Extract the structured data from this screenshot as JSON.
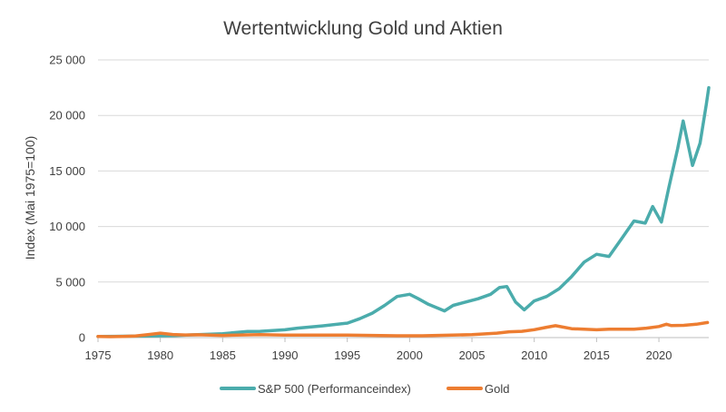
{
  "chart_data": {
    "type": "line",
    "title": "Wertentwicklung Gold und Aktien",
    "ylabel": "Index (Mai 1975=100)",
    "xlabel": "",
    "xlim": [
      1975,
      2024
    ],
    "ylim": [
      0,
      25000
    ],
    "x_ticks": [
      1975,
      1980,
      1985,
      1990,
      1995,
      2000,
      2005,
      2010,
      2015,
      2020
    ],
    "x_tick_labels": [
      "1975",
      "1980",
      "1985",
      "1990",
      "1995",
      "2000",
      "2005",
      "2010",
      "2015",
      "2020"
    ],
    "y_ticks": [
      0,
      5000,
      10000,
      15000,
      20000,
      25000
    ],
    "y_tick_labels": [
      "0",
      "5 000",
      "10 000",
      "15 000",
      "20 000",
      "25 000"
    ],
    "grid": "horizontal",
    "legend_position": "bottom",
    "series": [
      {
        "name": "S&P 500 (Performanceindex)",
        "color": "#4bacac",
        "x": [
          1975,
          1977,
          1979,
          1981,
          1983,
          1985,
          1987,
          1988,
          1990,
          1991,
          1993,
          1995,
          1996,
          1997,
          1998,
          1999,
          2000,
          2000.7,
          2001.5,
          2002.8,
          2003.5,
          2004.5,
          2005.5,
          2006.5,
          2007.2,
          2007.8,
          2008.5,
          2009.2,
          2010,
          2011,
          2012,
          2013,
          2014,
          2015,
          2016,
          2017,
          2018,
          2018.9,
          2019.5,
          2020.2,
          2020.8,
          2021.5,
          2021.95,
          2022.7,
          2023.3,
          2023.8,
          2024
        ],
        "values": [
          100,
          120,
          140,
          170,
          260,
          350,
          550,
          560,
          700,
          850,
          1050,
          1300,
          1700,
          2200,
          2900,
          3700,
          3900,
          3500,
          3000,
          2400,
          2900,
          3200,
          3500,
          3900,
          4500,
          4600,
          3200,
          2500,
          3300,
          3700,
          4400,
          5500,
          6800,
          7500,
          7300,
          8900,
          10500,
          10300,
          11800,
          10400,
          13500,
          17000,
          19500,
          15500,
          17500,
          21000,
          22500
        ]
      },
      {
        "name": "Gold",
        "color": "#ed7d31",
        "x": [
          1975,
          1976,
          1977,
          1978,
          1979,
          1980,
          1981,
          1982,
          1983,
          1985,
          1988,
          1990,
          1995,
          1999,
          2001,
          2003,
          2005,
          2007,
          2008,
          2009,
          2010,
          2011,
          2011.7,
          2013,
          2014,
          2015,
          2016,
          2018,
          2019,
          2020,
          2020.6,
          2021,
          2022,
          2023,
          2023.9
        ],
        "values": [
          100,
          80,
          110,
          140,
          260,
          400,
          280,
          240,
          250,
          200,
          270,
          230,
          230,
          160,
          160,
          210,
          260,
          400,
          520,
          560,
          710,
          930,
          1070,
          800,
          750,
          700,
          750,
          760,
          850,
          1000,
          1200,
          1080,
          1100,
          1200,
          1360
        ]
      }
    ]
  }
}
